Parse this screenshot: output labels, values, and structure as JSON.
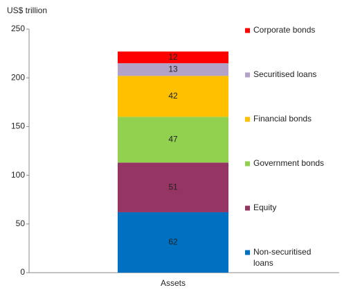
{
  "chart_data": {
    "type": "stacked_bar",
    "y_label": "US$ trillion",
    "categories": [
      "Assets"
    ],
    "series": [
      {
        "name": "Non-securitised loans",
        "color": "#0070c0",
        "values": [
          62
        ]
      },
      {
        "name": "Equity",
        "color": "#953563",
        "values": [
          51
        ]
      },
      {
        "name": "Government bonds",
        "color": "#92d050",
        "values": [
          47
        ]
      },
      {
        "name": "Financial bonds",
        "color": "#ffc000",
        "values": [
          42
        ]
      },
      {
        "name": "Securitised loans",
        "color": "#b3a2c7",
        "values": [
          13
        ]
      },
      {
        "name": "Corporate bonds",
        "color": "#ff0000",
        "values": [
          12
        ]
      }
    ],
    "ylim": [
      0,
      250
    ],
    "yticks": [
      0,
      50,
      100,
      150,
      200,
      250
    ],
    "legend": "right"
  }
}
